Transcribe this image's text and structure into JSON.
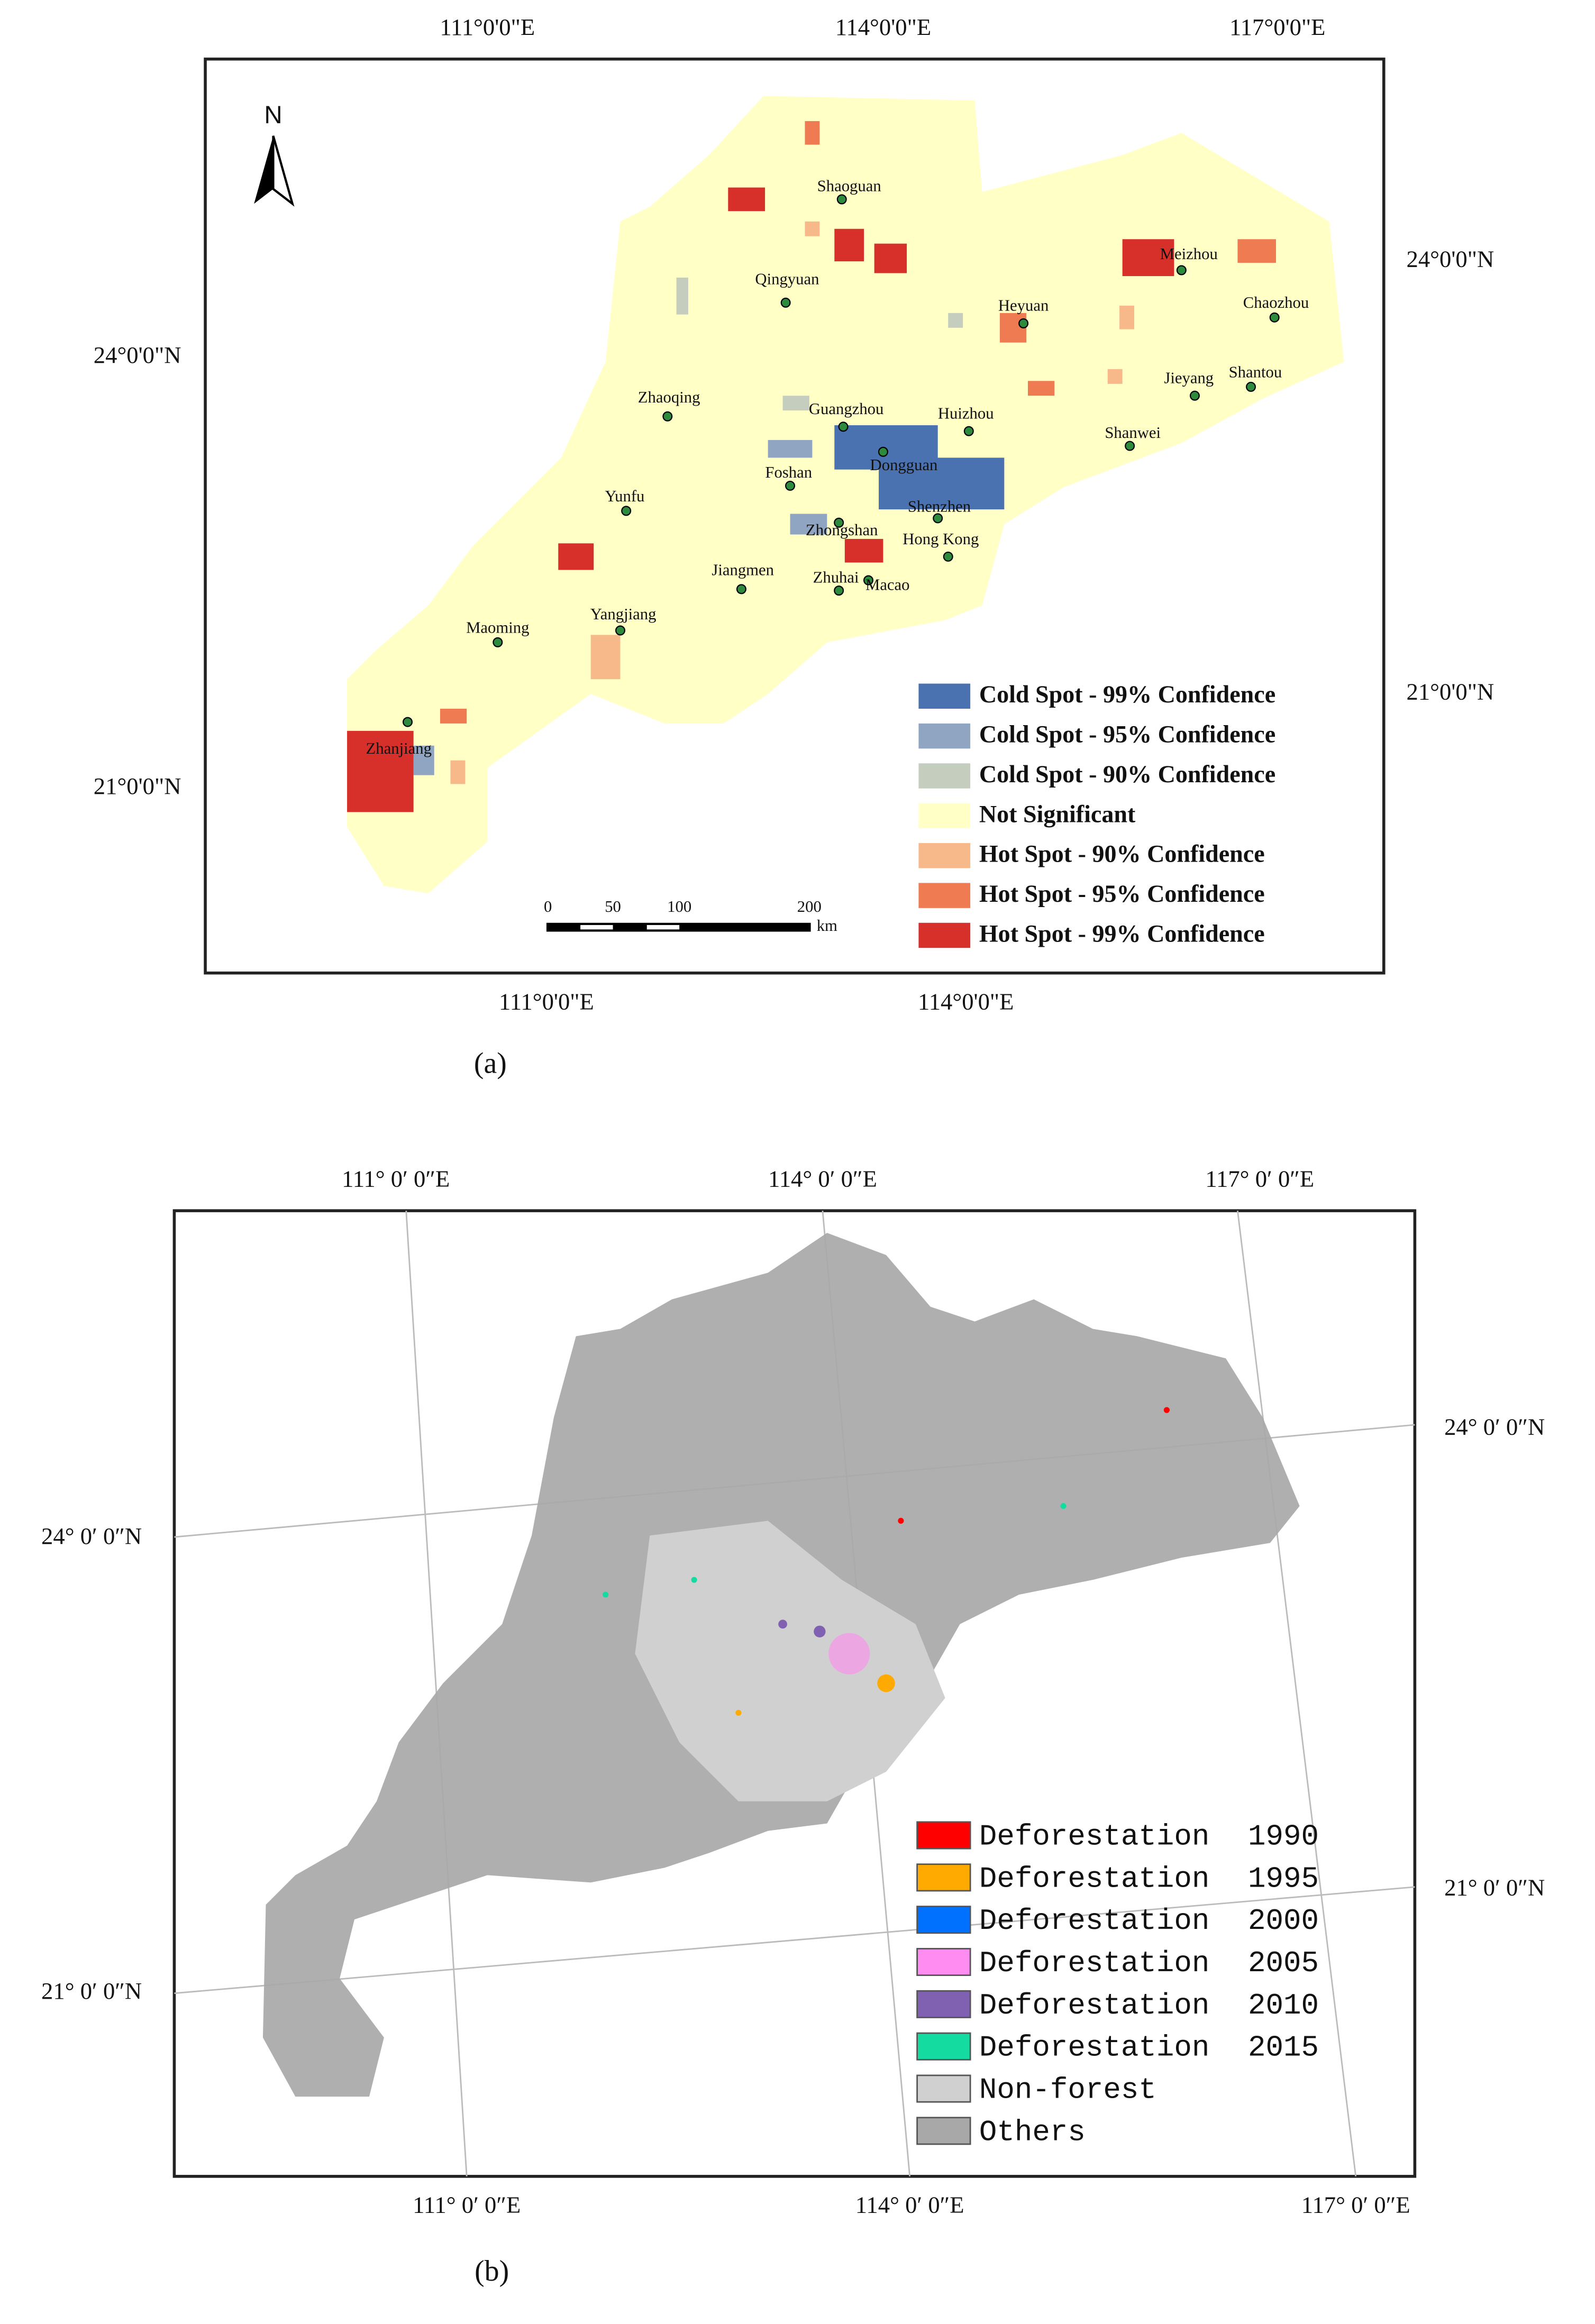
{
  "panel_a": {
    "caption": "(a)",
    "north": "N",
    "top_labels": [
      "111°0'0\"E",
      "114°0'0\"E",
      "117°0'0\"E"
    ],
    "bottom_labels": [
      "111°0'0\"E",
      "114°0'0\"E"
    ],
    "left_labels": [
      "24°0'0\"N",
      "21°0'0\"N"
    ],
    "right_labels": [
      "24°0'0\"N",
      "21°0'0\"N"
    ],
    "cities": [
      "Shaoguan",
      "Qingyuan",
      "Heyuan",
      "Meizhou",
      "Chaozhou",
      "Zhaoqing",
      "Guangzhou",
      "Huizhou",
      "Dongguan",
      "Foshan",
      "Jieyang",
      "Shantou",
      "Shanwei",
      "Yunfu",
      "Shenzhen",
      "Zhongshan",
      "Hong Kong",
      "Jiangmen",
      "Zhuhai",
      "Macao",
      "Yangjiang",
      "Maoming",
      "Zhanjiang"
    ],
    "scale_labels": [
      "0",
      "50",
      "100",
      "200"
    ],
    "scale_unit": "km",
    "legend": [
      {
        "label": "Cold Spot - 99% Confidence",
        "color": "#4a72b0"
      },
      {
        "label": "Cold Spot - 95% Confidence",
        "color": "#8fa5c2"
      },
      {
        "label": "Cold Spot - 90% Confidence",
        "color": "#c5cdbf"
      },
      {
        "label": "Not Significant",
        "color": "#ffffc6"
      },
      {
        "label": "Hot Spot - 90% Confidence",
        "color": "#f8b98a"
      },
      {
        "label": "Hot Spot - 95% Confidence",
        "color": "#ef7b52"
      },
      {
        "label": "Hot Spot - 99% Confidence",
        "color": "#d7302b"
      }
    ]
  },
  "panel_b": {
    "caption": "(b)",
    "top_labels": [
      "111° 0′ 0″E",
      "114° 0′ 0″E",
      "117° 0′ 0″E"
    ],
    "bottom_labels": [
      "111° 0′ 0″E",
      "114° 0′ 0″E",
      "117° 0′ 0″E"
    ],
    "left_labels": [
      "24° 0′ 0″N",
      "21° 0′ 0″N"
    ],
    "right_labels": [
      "24° 0′ 0″N",
      "21° 0′ 0″N"
    ],
    "legend": [
      {
        "label": "Deforestation 1990",
        "color": "#ff0000"
      },
      {
        "label": "Deforestation 1995",
        "color": "#ffaa00"
      },
      {
        "label": "Deforestation 2000",
        "color": "#0070ff"
      },
      {
        "label": "Deforestation 2005",
        "color": "#ff8cf0"
      },
      {
        "label": "Deforestation 2010",
        "color": "#8060b0"
      },
      {
        "label": "Deforestation 2015",
        "color": "#14dca0"
      },
      {
        "label": "Non-forest",
        "color": "#d0d0d0"
      },
      {
        "label": "Others",
        "color": "#a8a8a8"
      }
    ]
  }
}
